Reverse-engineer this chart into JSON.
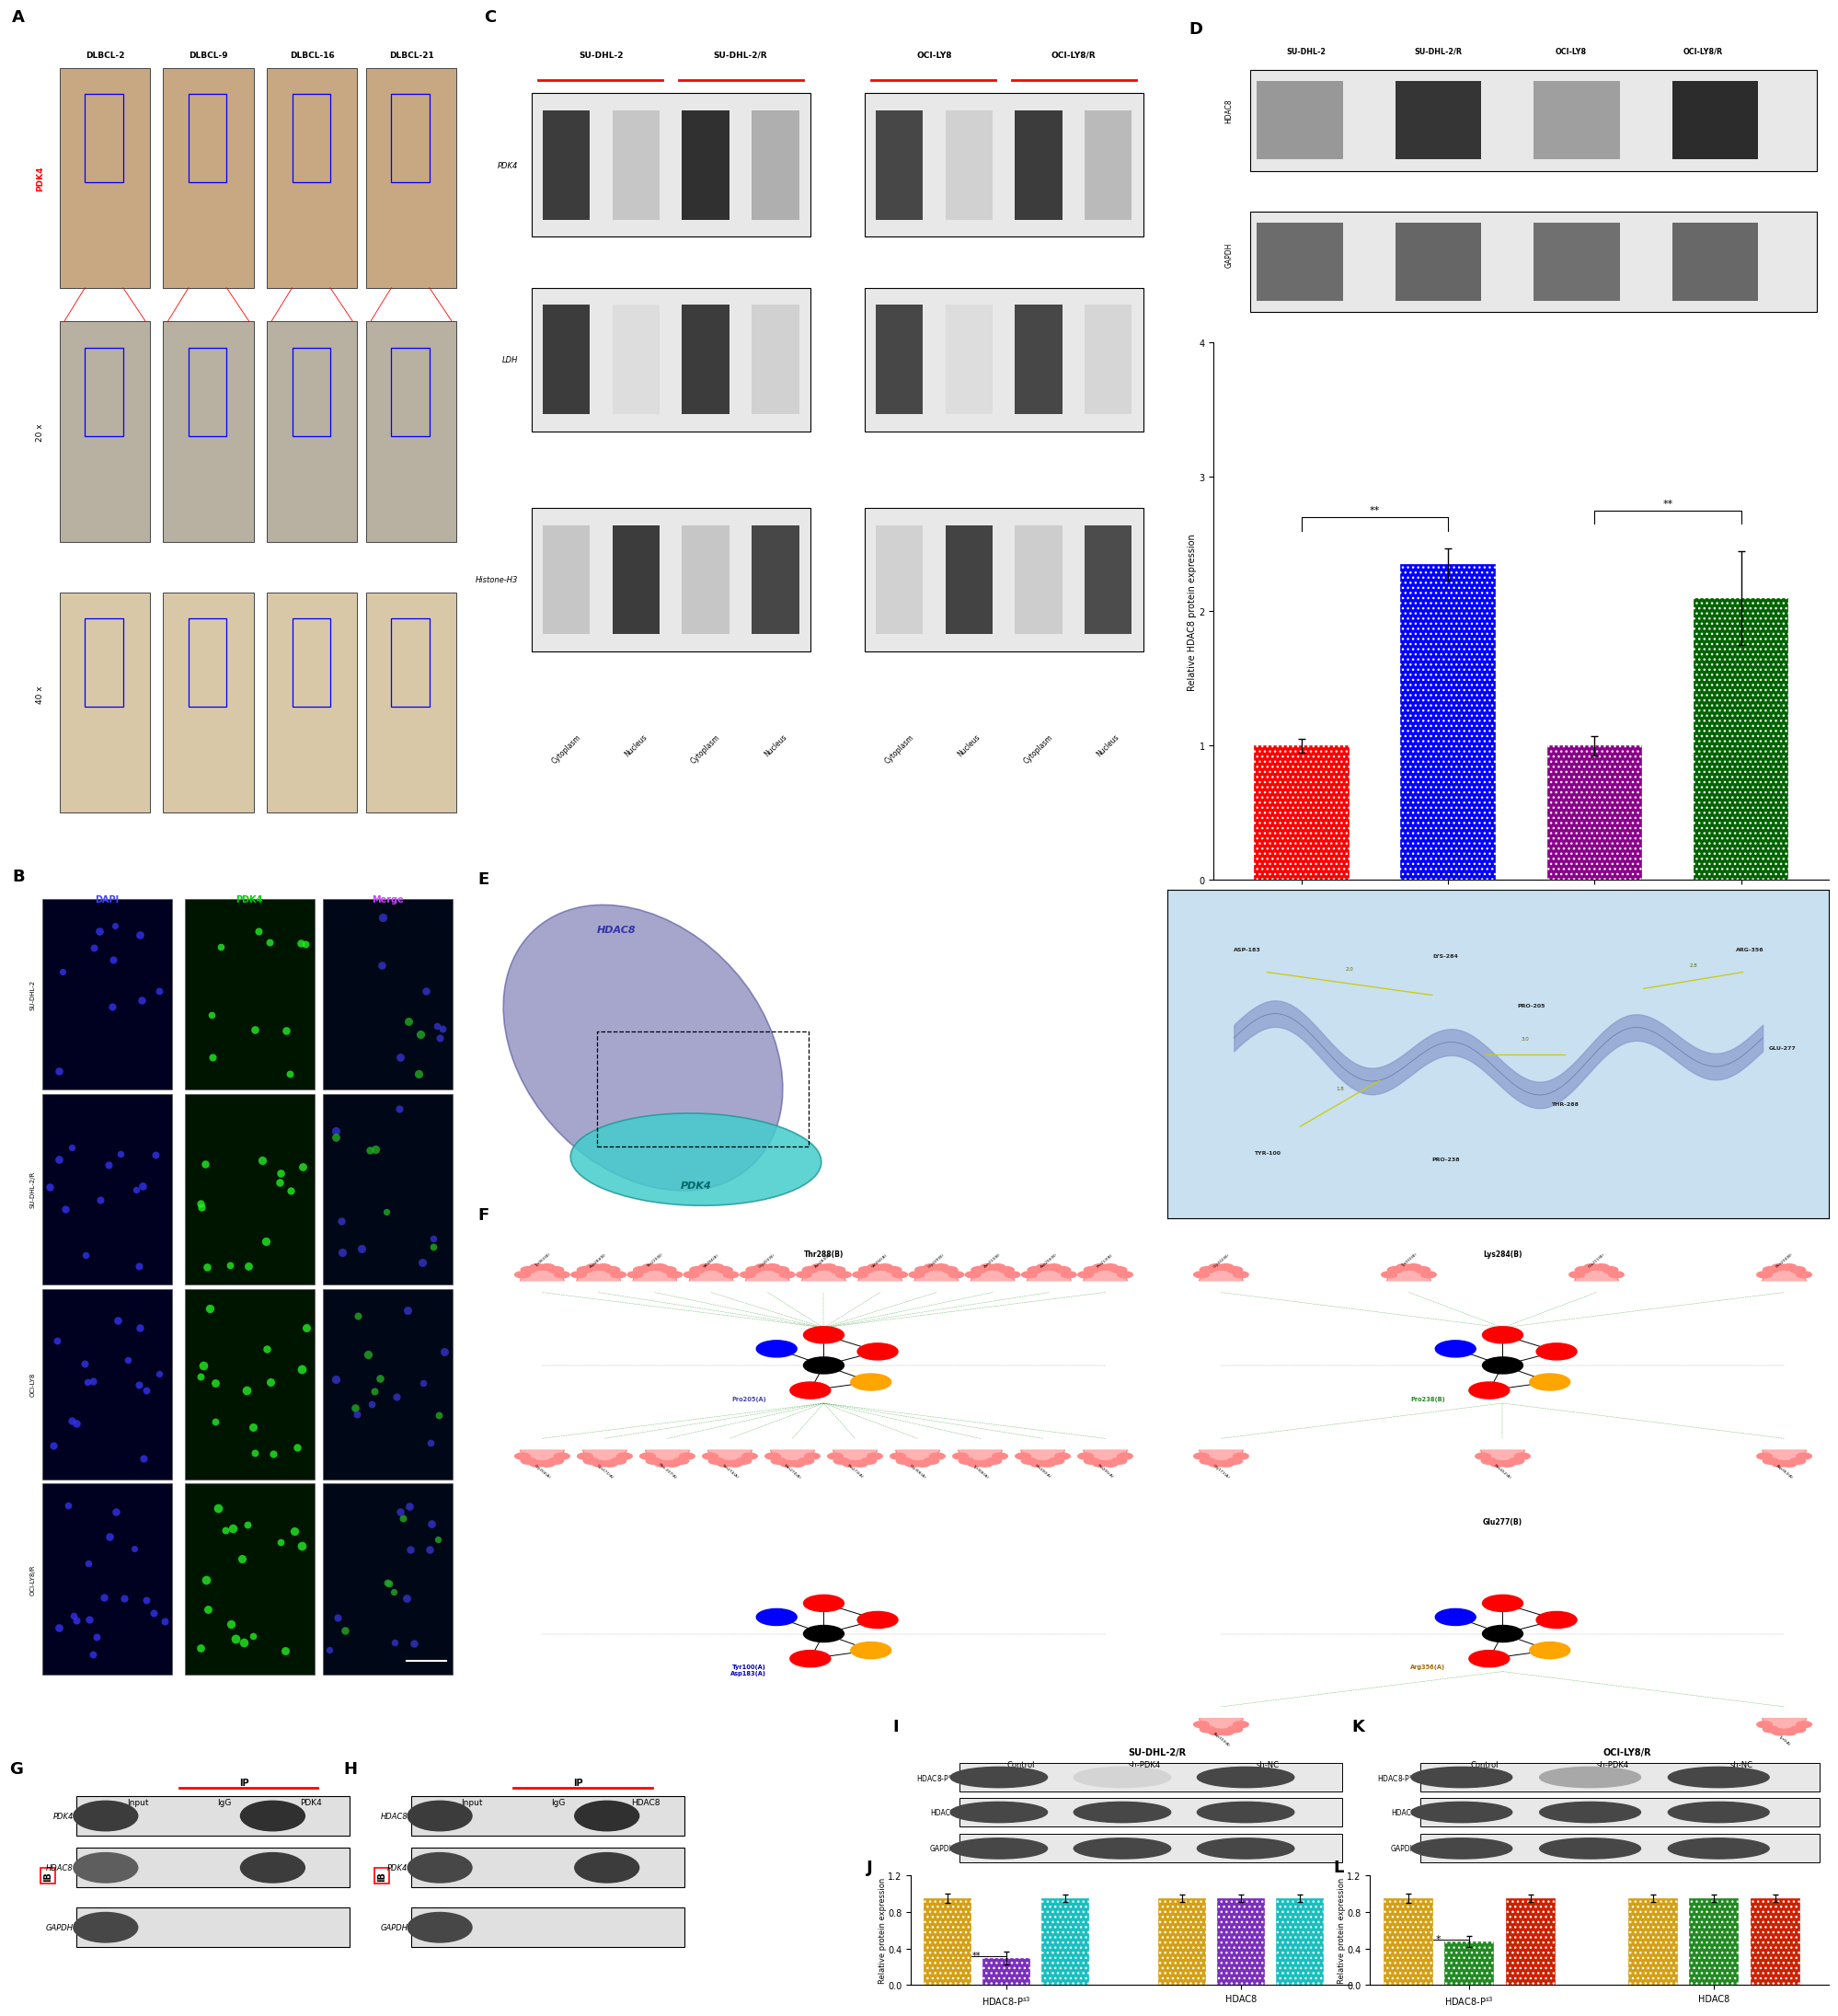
{
  "panel_D": {
    "categories": [
      "SU-DHL-2",
      "SU-DHL-2/R",
      "OCI-LY8",
      "OCI-LY8/R"
    ],
    "values": [
      1.0,
      2.35,
      1.0,
      2.1
    ],
    "errors": [
      0.05,
      0.12,
      0.07,
      0.35
    ],
    "colors": [
      "#FF0000",
      "#0000FF",
      "#8B008B",
      "#006400"
    ],
    "ylabel": "Relative HDAC8 protein expression",
    "ylim": [
      0,
      4
    ],
    "yticks": [
      0,
      1,
      2,
      3,
      4
    ]
  },
  "panel_J": {
    "ylabel": "Relative protein expression",
    "ylim": [
      0,
      1.2
    ],
    "yticks": [
      0.0,
      0.4,
      0.8,
      1.2
    ],
    "group1_values": [
      0.95,
      0.3,
      0.95
    ],
    "group1_errors": [
      0.05,
      0.07,
      0.04
    ],
    "group1_colors": [
      "#D4A017",
      "#7B2FBE",
      "#1ABFBF"
    ],
    "group2_values": [
      0.95,
      0.95,
      0.95
    ],
    "group2_errors": [
      0.04,
      0.04,
      0.04
    ],
    "group2_colors": [
      "#D4A017",
      "#7B2FBE",
      "#1ABFBF"
    ]
  },
  "panel_L": {
    "ylabel": "Relative protein expression",
    "ylim": [
      0,
      1.2
    ],
    "yticks": [
      0.0,
      0.4,
      0.8,
      1.2
    ],
    "group1_values": [
      0.95,
      0.48,
      0.95
    ],
    "group1_errors": [
      0.05,
      0.06,
      0.04
    ],
    "group1_colors": [
      "#D4A017",
      "#228B22",
      "#CC2200"
    ],
    "group2_values": [
      0.95,
      0.95,
      0.95
    ],
    "group2_errors": [
      0.04,
      0.04,
      0.04
    ],
    "group2_colors": [
      "#D4A017",
      "#228B22",
      "#CC2200"
    ]
  }
}
